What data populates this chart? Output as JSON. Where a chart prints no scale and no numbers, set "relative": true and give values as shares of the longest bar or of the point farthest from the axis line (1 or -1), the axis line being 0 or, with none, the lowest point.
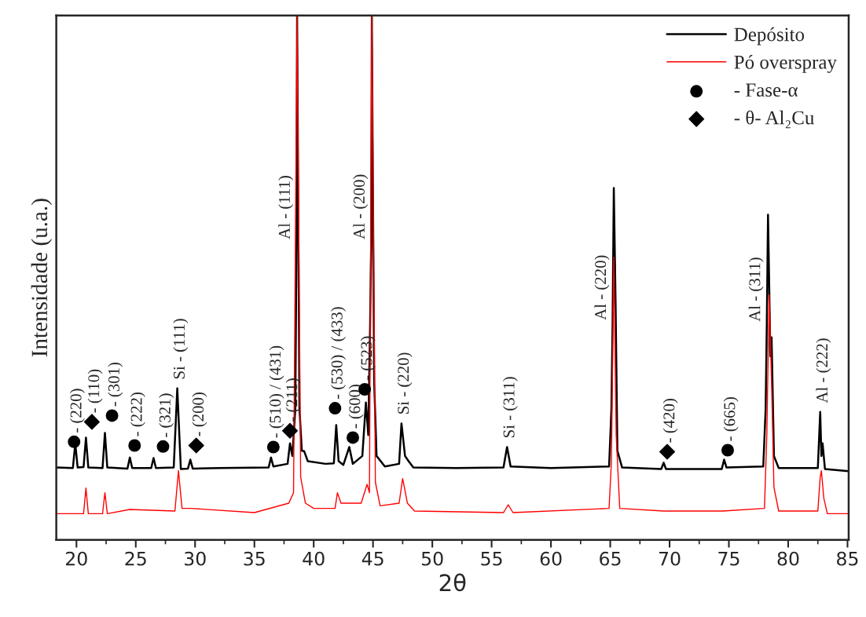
{
  "chart_data": {
    "type": "line",
    "xlabel": "2θ",
    "ylabel": "Intensidade (u.a.)",
    "relative": true,
    "xlim": [
      18.3,
      85.1
    ],
    "xticks": [
      20,
      25,
      30,
      35,
      40,
      45,
      50,
      55,
      60,
      65,
      70,
      75,
      80,
      85
    ],
    "legend": "top right",
    "grid": false,
    "series": [
      {
        "name": "Depósito",
        "color": "#000000",
        "x": [
          18.3,
          19.7,
          19.9,
          20.1,
          20.6,
          20.8,
          21.0,
          22.2,
          22.4,
          22.6,
          24.3,
          24.5,
          24.7,
          26.3,
          26.5,
          26.7,
          28.2,
          28.5,
          28.8,
          29.4,
          29.6,
          29.8,
          32,
          36.2,
          36.4,
          36.6,
          37.8,
          38.0,
          38.2,
          38.45,
          38.55,
          38.6,
          38.8,
          39.0,
          39.2,
          39.5,
          41.0,
          41.7,
          41.9,
          42.1,
          42.5,
          43.0,
          43.3,
          44.1,
          44.4,
          44.6,
          44.75,
          44.85,
          44.9,
          45.1,
          45.3,
          46.0,
          47.2,
          47.4,
          47.7,
          48.0,
          48.4,
          52,
          56.0,
          56.3,
          56.6,
          60,
          64.9,
          65.1,
          65.2,
          65.3,
          65.45,
          65.6,
          66,
          69.3,
          69.5,
          69.7,
          74.4,
          74.6,
          74.8,
          77.9,
          78.1,
          78.2,
          78.3,
          78.5,
          78.6,
          78.8,
          79.2,
          82.5,
          82.7,
          82.8,
          82.9,
          83.1,
          85.1
        ],
        "values": [
          0.138,
          0.137,
          0.184,
          0.138,
          0.139,
          0.195,
          0.138,
          0.137,
          0.204,
          0.138,
          0.136,
          0.157,
          0.137,
          0.137,
          0.156,
          0.137,
          0.138,
          0.289,
          0.135,
          0.136,
          0.153,
          0.136,
          0.137,
          0.138,
          0.157,
          0.14,
          0.145,
          0.184,
          0.16,
          0.25,
          0.573,
          1,
          0.25,
          0.17,
          0.169,
          0.15,
          0.145,
          0.146,
          0.219,
          0.15,
          0.143,
          0.177,
          0.145,
          0.16,
          0.262,
          0.2,
          0.4,
          0.573,
          1,
          0.3,
          0.16,
          0.14,
          0.145,
          0.222,
          0.16,
          0.15,
          0.138,
          0.137,
          0.138,
          0.177,
          0.14,
          0.137,
          0.14,
          0.25,
          0.419,
          0.671,
          0.45,
          0.17,
          0.138,
          0.135,
          0.147,
          0.135,
          0.135,
          0.153,
          0.138,
          0.14,
          0.25,
          0.416,
          0.62,
          0.35,
          0.386,
          0.16,
          0.137,
          0.137,
          0.244,
          0.16,
          0.184,
          0.135,
          0.131
        ]
      },
      {
        "name": "Pó overspray",
        "color": "#ff0000",
        "x": [
          18.3,
          20.6,
          20.8,
          21.0,
          22.2,
          22.4,
          22.6,
          24.5,
          28.3,
          28.6,
          28.9,
          29.7,
          35,
          37.9,
          38.3,
          38.6,
          38.9,
          39.3,
          40,
          41.8,
          42.0,
          42.3,
          43.0,
          44.0,
          44.5,
          44.7,
          44.9,
          45.2,
          45.6,
          47.2,
          47.5,
          47.9,
          48.5,
          56.0,
          56.4,
          56.8,
          64.9,
          65.1,
          65.3,
          65.5,
          65.8,
          69.5,
          74.5,
          78.0,
          78.2,
          78.4,
          78.6,
          78.8,
          79.2,
          82.5,
          82.7,
          82.8,
          83.0,
          83.3,
          85.1
        ],
        "values": [
          0.05,
          0.05,
          0.099,
          0.05,
          0.05,
          0.09,
          0.05,
          0.058,
          0.055,
          0.132,
          0.06,
          0.06,
          0.052,
          0.07,
          0.09,
          1,
          0.12,
          0.07,
          0.06,
          0.06,
          0.09,
          0.07,
          0.07,
          0.07,
          0.106,
          0.09,
          1,
          0.11,
          0.065,
          0.07,
          0.117,
          0.07,
          0.055,
          0.052,
          0.067,
          0.052,
          0.06,
          0.15,
          0.539,
          0.2,
          0.06,
          0.055,
          0.055,
          0.06,
          0.2,
          0.467,
          0.3,
          0.1,
          0.055,
          0.055,
          0.12,
          0.132,
          0.08,
          0.05,
          0.05
        ]
      },
      {
        "name": "- Fase-α",
        "color": "#000000",
        "type": "scatter",
        "marker": "circle",
        "x": [
          19.8,
          23.0,
          24.9,
          27.3,
          36.6,
          41.8,
          43.3,
          44.3,
          74.9
        ],
        "values": [
          0.187,
          0.237,
          0.18,
          0.178,
          0.177,
          0.251,
          0.195,
          0.287,
          0.171
        ]
      },
      {
        "name": "- θ- Al₂Cu",
        "color": "#000000",
        "type": "scatter",
        "marker": "diamond",
        "x": [
          21.3,
          30.1,
          38.0,
          69.8
        ],
        "values": [
          0.225,
          0.18,
          0.208,
          0.168
        ]
      }
    ],
    "annotations": [
      {
        "text": "- (220)",
        "x": 19.8,
        "y": 0.187
      },
      {
        "text": "- (110)",
        "x": 21.3,
        "y": 0.225
      },
      {
        "text": "- (301)",
        "x": 23.0,
        "y": 0.237
      },
      {
        "text": "- (222)",
        "x": 24.9,
        "y": 0.18
      },
      {
        "text": "- (321)",
        "x": 27.3,
        "y": 0.178
      },
      {
        "text": "Si - (111)",
        "x": 28.5,
        "y": 0.289
      },
      {
        "text": "- (200)",
        "x": 30.1,
        "y": 0.18
      },
      {
        "text": "- (510) / (431)",
        "x": 36.6,
        "y": 0.177
      },
      {
        "text": "- (211)",
        "x": 38.0,
        "y": 0.208
      },
      {
        "text": "Al - (111)",
        "x": 38.55,
        "y": 0.573
      },
      {
        "text": "- (530) / (433)",
        "x": 41.8,
        "y": 0.251
      },
      {
        "text": "- (600)",
        "x": 43.3,
        "y": 0.195
      },
      {
        "text": "- (523)",
        "x": 44.3,
        "y": 0.287
      },
      {
        "text": "Al - (200)",
        "x": 44.85,
        "y": 0.573
      },
      {
        "text": "Si - (220)",
        "x": 47.4,
        "y": 0.222
      },
      {
        "text": "Si - (311)",
        "x": 56.3,
        "y": 0.177
      },
      {
        "text": "Al - (220)",
        "x": 65.2,
        "y": 0.419
      },
      {
        "text": "- (420)",
        "x": 69.8,
        "y": 0.168
      },
      {
        "text": "- (665)",
        "x": 74.9,
        "y": 0.171
      },
      {
        "text": "Al - (311)",
        "x": 78.2,
        "y": 0.416
      },
      {
        "text": "Al - (222)",
        "x": 82.7,
        "y": 0.244
      }
    ]
  }
}
